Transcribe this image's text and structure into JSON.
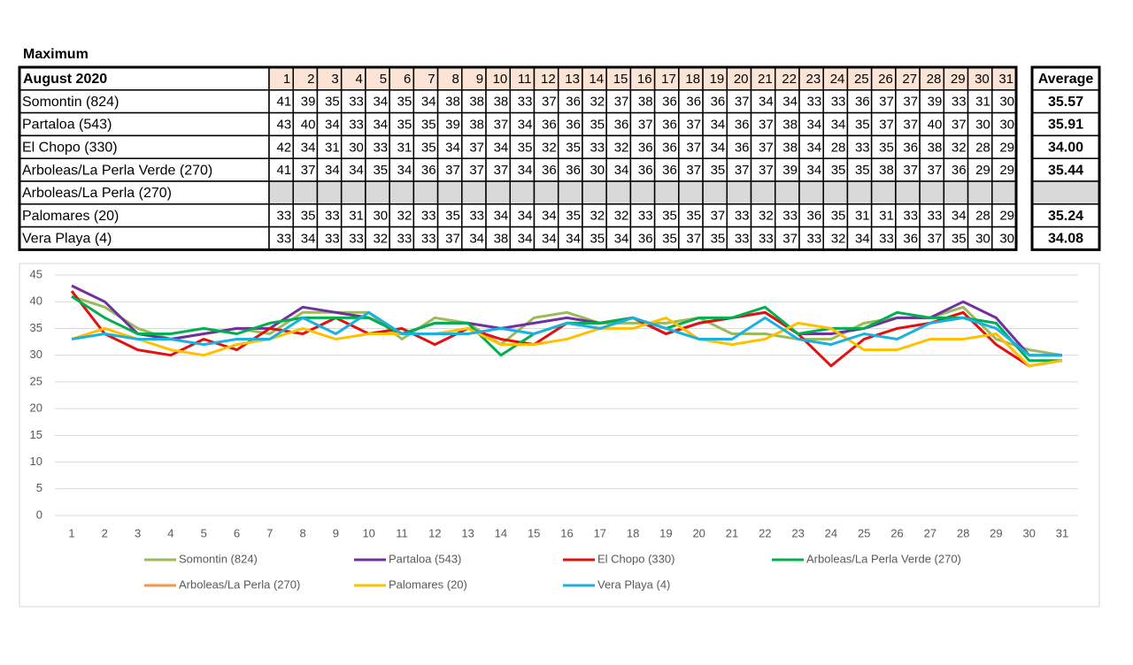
{
  "title": "Maximum",
  "table": {
    "corner": "August 2020",
    "average_header": "Average",
    "averages": [
      "35.57",
      "35.91",
      "34.00",
      "35.44",
      null,
      "35.24",
      "34.08"
    ]
  },
  "chart_data": {
    "type": "line",
    "categories": [
      1,
      2,
      3,
      4,
      5,
      6,
      7,
      8,
      9,
      10,
      11,
      12,
      13,
      14,
      15,
      16,
      17,
      18,
      19,
      20,
      21,
      22,
      23,
      24,
      25,
      26,
      27,
      28,
      29,
      30,
      31
    ],
    "ylim": [
      0,
      45
    ],
    "yticks": [
      0,
      5,
      10,
      15,
      20,
      25,
      30,
      35,
      40,
      45
    ],
    "grid": true,
    "series": [
      {
        "name": "Somontin (824)",
        "color": "#9bbb59",
        "values": [
          41,
          39,
          35,
          33,
          34,
          35,
          34,
          38,
          38,
          38,
          33,
          37,
          36,
          32,
          37,
          38,
          36,
          36,
          36,
          37,
          34,
          34,
          33,
          33,
          36,
          37,
          37,
          39,
          33,
          31,
          30
        ]
      },
      {
        "name": "Partaloa (543)",
        "color": "#7030a0",
        "values": [
          43,
          40,
          34,
          33,
          34,
          35,
          35,
          39,
          38,
          37,
          34,
          36,
          36,
          35,
          36,
          37,
          36,
          37,
          34,
          36,
          37,
          38,
          34,
          34,
          35,
          37,
          37,
          40,
          37,
          30,
          30
        ]
      },
      {
        "name": "El Chopo (330)",
        "color": "#e31010",
        "values": [
          42,
          34,
          31,
          30,
          33,
          31,
          35,
          34,
          37,
          34,
          35,
          32,
          35,
          33,
          32,
          36,
          36,
          37,
          34,
          36,
          37,
          38,
          34,
          28,
          33,
          35,
          36,
          38,
          32,
          28,
          29
        ]
      },
      {
        "name": "Arboleas/La Perla Verde (270)",
        "color": "#00b050",
        "values": [
          41,
          37,
          34,
          34,
          35,
          34,
          36,
          37,
          37,
          37,
          34,
          36,
          36,
          30,
          34,
          36,
          36,
          37,
          35,
          37,
          37,
          39,
          34,
          35,
          35,
          38,
          37,
          37,
          36,
          29,
          29
        ]
      },
      {
        "name": "Arboleas/La Perla (270)",
        "color": "#f79646",
        "values": [
          null,
          null,
          null,
          null,
          null,
          null,
          null,
          null,
          null,
          null,
          null,
          null,
          null,
          null,
          null,
          null,
          null,
          null,
          null,
          null,
          null,
          null,
          null,
          null,
          null,
          null,
          null,
          null,
          null,
          null,
          null
        ]
      },
      {
        "name": "Palomares (20)",
        "color": "#ffc000",
        "values": [
          33,
          35,
          33,
          31,
          30,
          32,
          33,
          35,
          33,
          34,
          34,
          34,
          35,
          32,
          32,
          33,
          35,
          35,
          37,
          33,
          32,
          33,
          36,
          35,
          31,
          31,
          33,
          33,
          34,
          28,
          29
        ]
      },
      {
        "name": "Vera Playa (4)",
        "color": "#1ab0e0",
        "values": [
          33,
          34,
          33,
          33,
          32,
          33,
          33,
          37,
          34,
          38,
          34,
          34,
          34,
          35,
          34,
          36,
          35,
          37,
          35,
          33,
          33,
          37,
          33,
          32,
          34,
          33,
          36,
          37,
          35,
          30,
          30
        ]
      }
    ]
  }
}
